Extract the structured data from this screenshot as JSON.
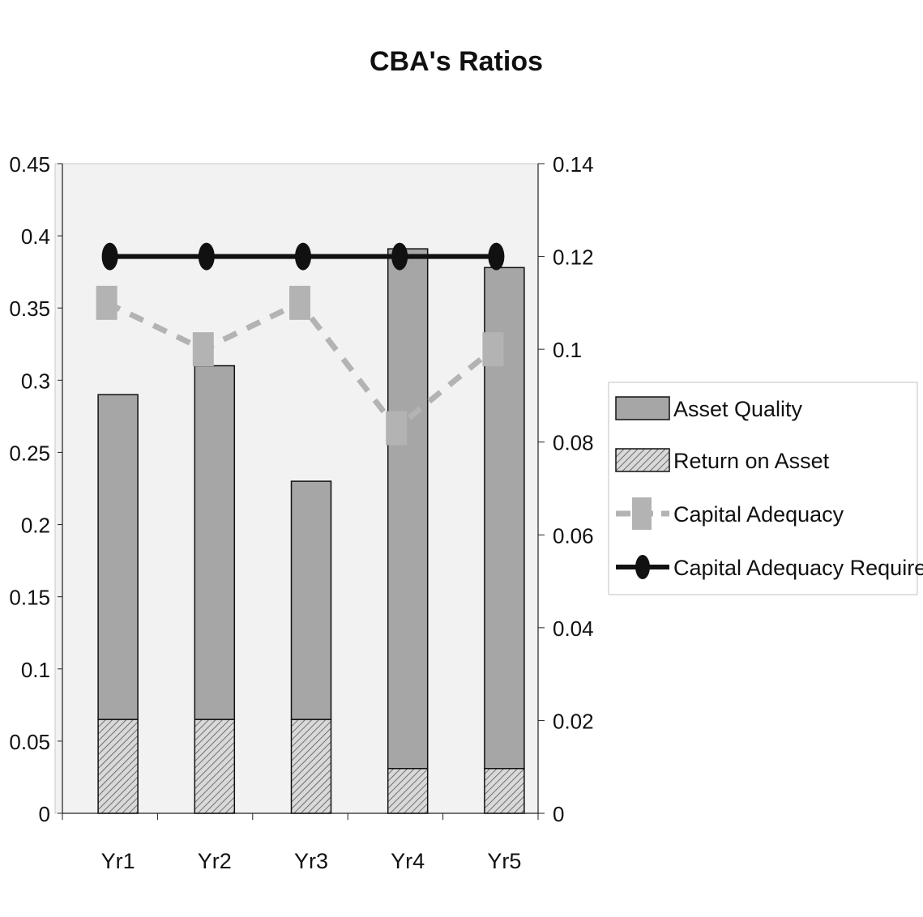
{
  "chart_data": {
    "type": "bar",
    "title": "CBA's Ratios",
    "categories": [
      "Yr1",
      "Yr2",
      "Yr3",
      "Yr4",
      "Yr5"
    ],
    "left_axis": {
      "ylim": [
        0,
        0.45
      ],
      "ticks": [
        "0",
        "0.05",
        "0.1",
        "0.15",
        "0.2",
        "0.25",
        "0.3",
        "0.35",
        "0.4",
        "0.45"
      ]
    },
    "right_axis": {
      "ylim": [
        0,
        0.14
      ],
      "ticks": [
        "0",
        "0.02",
        "0.04",
        "0.06",
        "0.08",
        "0.1",
        "0.12",
        "0.14"
      ]
    },
    "series": [
      {
        "name": "Asset Quality",
        "type": "stacked-bar",
        "axis": "left",
        "values": [
          0.225,
          0.245,
          0.165,
          0.36,
          0.347
        ],
        "color": "#a6a6a6"
      },
      {
        "name": "Return on Asset",
        "type": "stacked-bar",
        "axis": "left",
        "pattern": "diagonal-hatch",
        "values": [
          0.065,
          0.065,
          0.065,
          0.031,
          0.031
        ],
        "color": "#8c8c8c"
      },
      {
        "name": "Capital Adequacy",
        "type": "line",
        "axis": "right",
        "style": "dashed",
        "marker": "square",
        "values": [
          0.11,
          0.1,
          0.11,
          0.083,
          0.1
        ],
        "color": "#b3b3b3"
      },
      {
        "name": "Capital Adequacy Requirement",
        "type": "line",
        "axis": "right",
        "style": "solid",
        "marker": "circle",
        "values": [
          0.12,
          0.12,
          0.12,
          0.12,
          0.12
        ],
        "color": "#111111"
      }
    ],
    "legend_order": [
      "Asset Quality",
      "Return on Asset",
      "Capital Adequacy",
      "Capital Adequacy Requirement"
    ],
    "legend_position": "right",
    "plot_background": "#f2f2f2"
  }
}
